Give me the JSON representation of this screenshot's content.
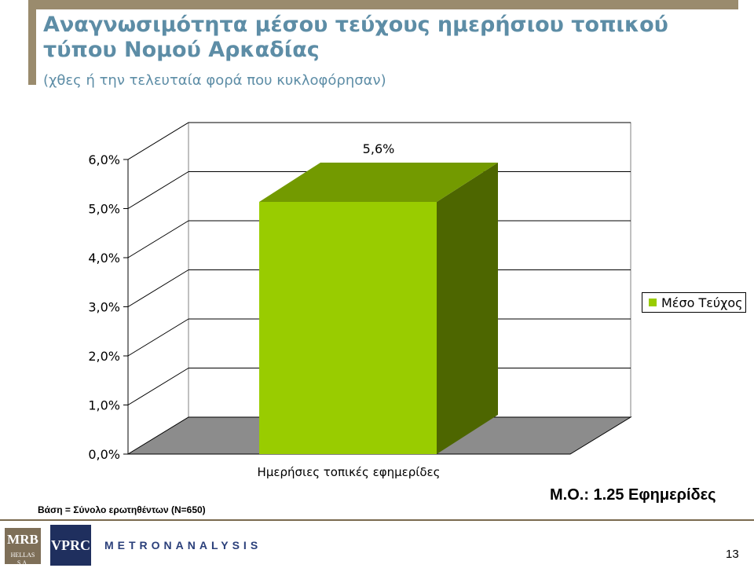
{
  "header": {
    "title": "Αναγνωσιμότητα μέσου τεύχους ημερήσιου τοπικού τύπου Νομού Αρκαδίας",
    "subtitle": "(χθες ή την τελευταία φορά που κυκλοφόρησαν)"
  },
  "chart_data": {
    "type": "bar",
    "categories": [
      "Ημερήσιες τοπικές εφημερίδες"
    ],
    "series": [
      {
        "name": "Μέσο Τεύχος",
        "values": [
          5.6
        ],
        "data_labels": [
          "5,6%"
        ],
        "color": "#99cc00"
      }
    ],
    "y_ticks": [
      "0,0%",
      "1,0%",
      "2,0%",
      "3,0%",
      "4,0%",
      "5,0%",
      "6,0%"
    ],
    "ylim": [
      0,
      6
    ],
    "grid": true,
    "style": "3d",
    "legend_position": "right"
  },
  "footnote": "Βάση = Σύνολο ερωτηθέντων (Ν=650)",
  "mean_note": "Μ.Ο.: 1.25 Εφημερίδες",
  "footer": {
    "logo_mrb": "MRB",
    "logo_mrb_sub": "HELLAS S.A.",
    "logo_vprc": "VPRC",
    "logo_metron": "METRONANALYSIS",
    "page_number": "13"
  }
}
